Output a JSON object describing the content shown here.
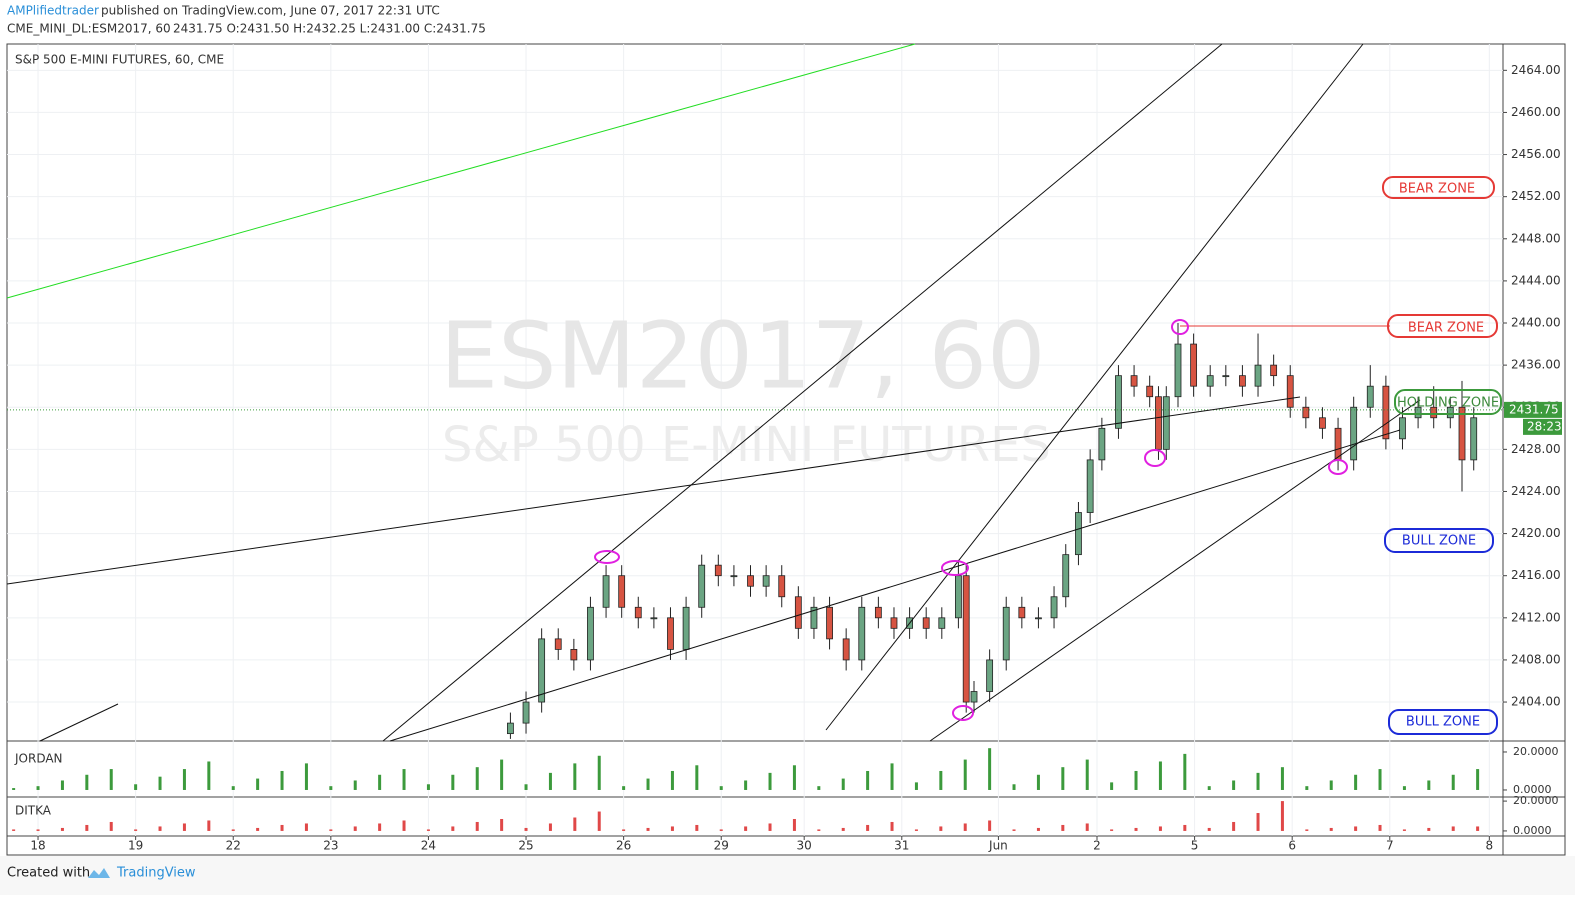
{
  "header": {
    "author": "AMPlifiedtrader",
    "published": "published on TradingView.com, June 07, 2017 22:31 UTC",
    "symbol": "CME_MINI_DL:ESM2017, 60",
    "ohlc": "2431.75 O:2431.50 H:2432.25 L:2431.00 C:2431.75"
  },
  "chart_data": {
    "type": "candlestick",
    "title": "S&P 500 E-MINI FUTURES, 60, CME",
    "watermark": "ESM2017, 60",
    "watermark_sub": "S&P 500 E-MINI FUTURES",
    "up_color": "#6ba583",
    "down_color": "#d75442",
    "grid": true,
    "x": [
      4.84,
      5.0,
      5.16,
      5.33,
      5.49,
      5.66,
      5.82,
      5.98,
      6.15,
      6.31,
      6.48,
      6.64,
      6.8,
      6.97,
      7.13,
      7.3,
      7.46,
      7.62,
      7.79,
      7.95,
      8.11,
      8.28,
      8.44,
      8.61,
      8.77,
      8.93,
      9.1,
      9.26,
      9.43,
      9.51,
      9.59,
      9.75,
      9.92,
      10.08,
      10.25,
      10.41,
      10.53,
      10.66,
      10.78,
      10.9,
      11.07,
      11.23,
      11.39,
      11.48,
      11.56,
      11.68,
      11.84,
      12.01,
      12.17,
      12.34,
      12.5,
      12.66,
      12.83,
      12.99,
      13.16,
      13.32,
      13.48,
      13.65,
      13.81,
      13.98,
      14.14,
      14.3,
      14.47,
      14.59,
      14.71
    ],
    "open": [
      2401,
      2402,
      2404,
      2410,
      2409,
      2408,
      2413,
      2416,
      2413,
      2412,
      2412,
      2409,
      2413,
      2417,
      2416,
      2416,
      2415,
      2416,
      2414,
      2411,
      2413,
      2410,
      2408,
      2413,
      2412,
      2411,
      2412,
      2411,
      2412,
      2416,
      2404,
      2405,
      2408,
      2413,
      2412,
      2412,
      2414,
      2418,
      2422,
      2427,
      2430,
      2435,
      2434,
      2433,
      2428,
      2433,
      2438,
      2434,
      2435,
      2435,
      2434,
      2436,
      2435,
      2432,
      2431,
      2430,
      2427,
      2432,
      2434,
      2429,
      2431,
      2432,
      2431,
      2432,
      2427
    ],
    "high": [
      2403,
      2405,
      2411,
      2411,
      2410,
      2414,
      2417,
      2417,
      2414,
      2413,
      2413,
      2414,
      2418,
      2418,
      2417,
      2417,
      2417,
      2417,
      2415,
      2414,
      2414,
      2411,
      2414,
      2414,
      2413,
      2413,
      2413,
      2413,
      2417.5,
      2417,
      2406,
      2409,
      2414,
      2414,
      2413,
      2415,
      2419,
      2423,
      2428,
      2431,
      2436,
      2436,
      2435,
      2434,
      2434,
      2440,
      2439,
      2436,
      2436,
      2436,
      2439,
      2437,
      2436,
      2433,
      2432,
      2431,
      2433,
      2436,
      2435,
      2432,
      2433,
      2434,
      2433,
      2434.5,
      2432
    ],
    "low": [
      2400.5,
      2401,
      2403,
      2408,
      2407,
      2407,
      2412,
      2412,
      2411,
      2411,
      2408,
      2408,
      2412,
      2415,
      2415,
      2414,
      2414,
      2413,
      2410,
      2410,
      2409,
      2407,
      2407,
      2411,
      2410,
      2410,
      2410,
      2410,
      2411,
      2403,
      2403,
      2404,
      2407,
      2411,
      2411,
      2411,
      2413,
      2417,
      2421,
      2426,
      2429,
      2433,
      2432,
      2427,
      2427,
      2432,
      2433,
      2433,
      2434,
      2433,
      2433,
      2434,
      2431,
      2430,
      2429,
      2426,
      2426,
      2431,
      2428,
      2428,
      2430,
      2430,
      2430,
      2424,
      2426
    ],
    "close": [
      2402,
      2404,
      2410,
      2409,
      2408,
      2413,
      2416,
      2413,
      2412,
      2412,
      2409,
      2413,
      2417,
      2416,
      2416,
      2415,
      2416,
      2414,
      2411,
      2413,
      2410,
      2408,
      2413,
      2412,
      2411,
      2412,
      2411,
      2412,
      2416,
      2404,
      2405,
      2408,
      2413,
      2412,
      2412,
      2414,
      2418,
      2422,
      2427,
      2430,
      2435,
      2434,
      2433,
      2428,
      2433,
      2438,
      2434,
      2435,
      2435,
      2434,
      2436,
      2435,
      2432,
      2431,
      2430,
      2427,
      2432,
      2434,
      2429,
      2431,
      2432,
      2431,
      2432,
      2427,
      2431
    ],
    "ylim": [
      2400.3,
      2466.5
    ],
    "yticks": [
      {
        "value": 2404,
        "label": "2404.00"
      },
      {
        "value": 2408,
        "label": "2408.00"
      },
      {
        "value": 2412,
        "label": "2412.00"
      },
      {
        "value": 2416,
        "label": "2416.00"
      },
      {
        "value": 2420,
        "label": "2420.00"
      },
      {
        "value": 2424,
        "label": "2424.00"
      },
      {
        "value": 2428,
        "label": "2428.00"
      },
      {
        "value": 2432,
        "label": "2432.00"
      },
      {
        "value": 2436,
        "label": "2436.00"
      },
      {
        "value": 2440,
        "label": "2440.00"
      },
      {
        "value": 2444,
        "label": "2444.00"
      },
      {
        "value": 2448,
        "label": "2448.00"
      },
      {
        "value": 2452,
        "label": "2452.00"
      },
      {
        "value": 2456,
        "label": "2456.00"
      },
      {
        "value": 2460,
        "label": "2460.00"
      },
      {
        "value": 2464,
        "label": "2464.00"
      }
    ],
    "xlim": [
      -0.318,
      15.01
    ],
    "xticks": [
      {
        "value": 0,
        "label": "18"
      },
      {
        "value": 1,
        "label": "19"
      },
      {
        "value": 2,
        "label": "22"
      },
      {
        "value": 3,
        "label": "23"
      },
      {
        "value": 4,
        "label": "24"
      },
      {
        "value": 5,
        "label": "25"
      },
      {
        "value": 6,
        "label": "26"
      },
      {
        "value": 7,
        "label": "29"
      },
      {
        "value": 7.85,
        "label": "30"
      },
      {
        "value": 8.85,
        "label": "31"
      },
      {
        "value": 9.84,
        "label": "Jun"
      },
      {
        "value": 10.85,
        "label": "2"
      },
      {
        "value": 11.85,
        "label": "5"
      },
      {
        "value": 12.85,
        "label": "6"
      },
      {
        "value": 13.85,
        "label": "7"
      },
      {
        "value": 14.87,
        "label": "8"
      }
    ],
    "last_price": 2431.75,
    "countdown": "28:23",
    "annotations": [
      "BEAR ZONE",
      "BEAR ZONE",
      "HOLDING ZONE",
      "BULL ZONE",
      "BULL ZONE"
    ],
    "indicators": [
      {
        "name": "JORDAN",
        "type": "bar",
        "color": "#3c9a3c",
        "ylim": [
          -3.7,
          24.2
        ],
        "yticks": [
          {
            "value": 0,
            "label": "0.0000"
          },
          {
            "value": 20,
            "label": "20.0000"
          }
        ],
        "x": [
          -0.25,
          0,
          0.25,
          0.5,
          0.75,
          1,
          1.25,
          1.5,
          1.75,
          2,
          2.25,
          2.5,
          2.75,
          3,
          3.25,
          3.5,
          3.75,
          4,
          4.25,
          4.5,
          4.75,
          5,
          5.25,
          5.5,
          5.75,
          6,
          6.25,
          6.5,
          6.75,
          7,
          7.25,
          7.5,
          7.75,
          8,
          8.25,
          8.5,
          8.75,
          9,
          9.25,
          9.5,
          9.75,
          10,
          10.25,
          10.5,
          10.75,
          11,
          11.25,
          11.5,
          11.75,
          12,
          12.25,
          12.5,
          12.75,
          13,
          13.25,
          13.5,
          13.75,
          14,
          14.25,
          14.5,
          14.75
        ],
        "values": [
          1,
          2,
          5,
          8,
          11,
          3,
          7,
          11,
          15,
          2,
          6,
          10,
          14,
          2,
          5,
          8,
          11,
          3,
          8,
          12,
          16,
          3,
          9,
          14,
          18,
          2,
          6,
          10,
          13,
          2,
          5,
          9,
          13,
          2,
          6,
          10,
          14,
          4,
          10,
          16,
          22,
          3,
          8,
          12,
          16,
          4,
          10,
          15,
          19,
          2,
          5,
          9,
          12,
          2,
          5,
          8,
          11,
          2,
          5,
          8,
          11
        ]
      },
      {
        "name": "DITKA",
        "type": "bar",
        "color": "#e04848",
        "ylim": [
          -3.4,
          21.4
        ],
        "yticks": [
          {
            "value": 0,
            "label": "0.0000"
          },
          {
            "value": 20,
            "label": "20.0000"
          }
        ],
        "x": [
          -0.25,
          0,
          0.25,
          0.5,
          0.75,
          1,
          1.25,
          1.5,
          1.75,
          2,
          2.25,
          2.5,
          2.75,
          3,
          3.25,
          3.5,
          3.75,
          4,
          4.25,
          4.5,
          4.75,
          5,
          5.25,
          5.5,
          5.75,
          6,
          6.25,
          6.5,
          6.75,
          7,
          7.25,
          7.5,
          7.75,
          8,
          8.25,
          8.5,
          8.75,
          9,
          9.25,
          9.5,
          9.75,
          10,
          10.25,
          10.5,
          10.75,
          11,
          11.25,
          11.5,
          11.75,
          12,
          12.25,
          12.5,
          12.75,
          13,
          13.25,
          13.5,
          13.75,
          14,
          14.25,
          14.5,
          14.75
        ],
        "values": [
          1,
          1,
          2,
          4,
          6,
          1,
          3,
          5,
          7,
          1,
          2,
          4,
          5,
          1,
          3,
          5,
          7,
          1,
          3,
          6,
          8,
          2,
          5,
          9,
          13,
          1,
          2,
          3,
          4,
          1,
          3,
          5,
          8,
          1,
          2,
          4,
          6,
          1,
          3,
          5,
          7,
          1,
          2,
          4,
          5,
          1,
          2,
          3,
          4,
          2,
          6,
          12,
          20,
          1,
          2,
          3,
          4,
          1,
          2,
          3,
          3
        ]
      }
    ]
  },
  "footer": {
    "created": "Created with",
    "brand": "TradingView"
  }
}
